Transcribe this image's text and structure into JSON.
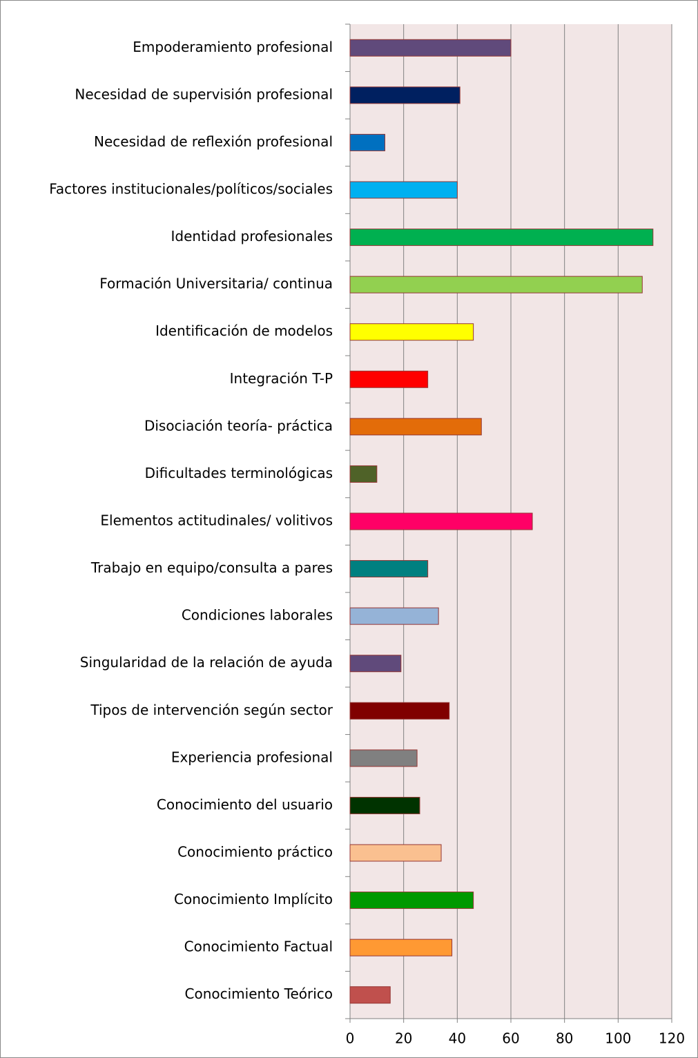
{
  "chart_data": {
    "type": "bar",
    "orientation": "horizontal",
    "categories": [
      "Empoderamiento profesional",
      "Necesidad de supervisión profesional",
      "Necesidad de reflexión profesional",
      "Factores institucionales/políticos/sociales",
      "Identidad profesionales",
      "Formación Universitaria/ continua",
      "Identificación de modelos",
      "Integración T-P",
      "Disociación teoría- práctica",
      "Dificultades terminológicas",
      "Elementos actitudinales/ volitivos",
      "Trabajo en equipo/consulta a pares",
      "Condiciones laborales",
      "Singularidad de la relación de ayuda",
      "Tipos de intervención según sector",
      "Experiencia profesional",
      "Conocimiento del usuario",
      "Conocimiento práctico",
      "Conocimiento Implícito",
      "Conocimiento Factual",
      "Conocimiento Teórico"
    ],
    "values": [
      60,
      41,
      13,
      40,
      113,
      109,
      46,
      29,
      49,
      10,
      68,
      29,
      33,
      19,
      37,
      25,
      26,
      34,
      46,
      38,
      15
    ],
    "colors": [
      "#604a7b",
      "#002060",
      "#0070c0",
      "#00b0f0",
      "#00b050",
      "#92d050",
      "#ffff00",
      "#ff0000",
      "#e36c09",
      "#4f6228",
      "#ff0066",
      "#008080",
      "#95b3d7",
      "#604a7b",
      "#800000",
      "#808080",
      "#003300",
      "#fac090",
      "#009900",
      "#ff9933",
      "#c0504d"
    ],
    "xlim": [
      0,
      120
    ],
    "xticks": [
      0,
      20,
      40,
      60,
      80,
      100,
      120
    ],
    "grid": true
  }
}
